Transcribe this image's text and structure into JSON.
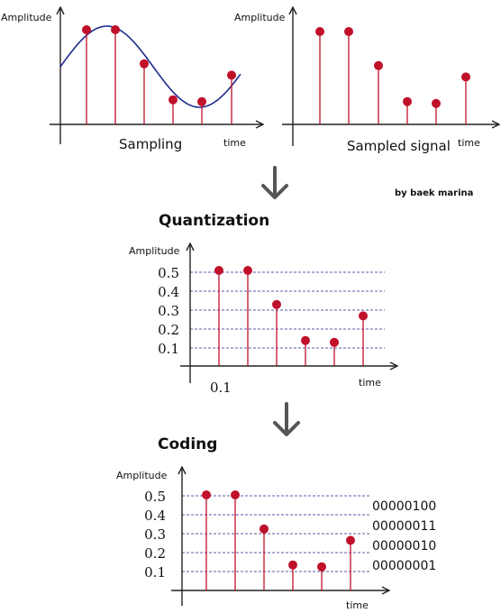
{
  "credit": "by baek marina",
  "stage_titles": {
    "quantization": "Quantization",
    "coding": "Coding"
  },
  "colors": {
    "stem": "#c0102a",
    "dot": "#c0102a",
    "wave": "#1f2a8c",
    "grid": "#5a5aa8",
    "axis": "#222222",
    "arrow": "#555555"
  },
  "samples": [
    0.5,
    0.5,
    0.32,
    0.13,
    0.12,
    0.26
  ],
  "charts": {
    "sampling": {
      "ylabel": "Amplitude",
      "xlabel": "time",
      "caption": "Sampling"
    },
    "sampled": {
      "ylabel": "Amplitude",
      "xlabel": "time",
      "caption": "Sampled signal"
    },
    "quantized": {
      "ylabel": "Amplitude",
      "xlabel": "time",
      "x_tick": "0.1",
      "y_ticks": [
        "0.5",
        "0.4",
        "0.3",
        "0.2",
        "0.1"
      ]
    },
    "coded": {
      "ylabel": "Amplitude",
      "xlabel": "time",
      "y_ticks": [
        "0.5",
        "0.4",
        "0.3",
        "0.2",
        "0.1"
      ],
      "codes": [
        "00000100",
        "00000011",
        "00000010",
        "00000001"
      ]
    }
  },
  "chart_data": {
    "type": "scatter",
    "title": "",
    "ylabel": "Amplitude",
    "xlabel": "time",
    "series": [
      {
        "values": [
          0.5,
          0.5,
          0.32,
          0.13,
          0.12,
          0.26
        ]
      }
    ],
    "y_ticks": [
      0.1,
      0.2,
      0.3,
      0.4,
      0.5
    ],
    "codes": [
      "00000100",
      "00000011",
      "00000010",
      "00000001"
    ]
  }
}
